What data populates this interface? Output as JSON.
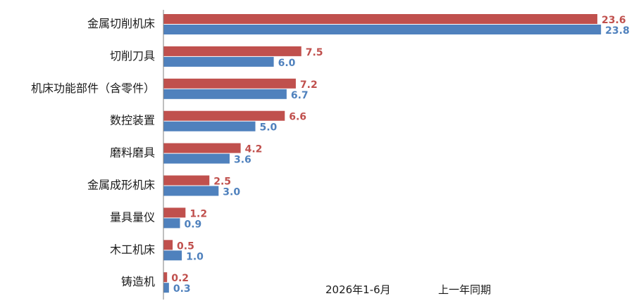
{
  "colors": {
    "current": "#c0504d",
    "previous": "#4f81bd",
    "axis": "#7f7f7f"
  },
  "chart_data": {
    "type": "bar",
    "orientation": "horizontal",
    "categories": [
      "金属切削机床",
      "切削刀具",
      "机床功能部件（含零件）",
      "数控装置",
      "磨料磨具",
      "金属成形机床",
      "量具量仪",
      "木工机床",
      "铸造机"
    ],
    "series": [
      {
        "name": "2026年1-6月",
        "values": [
          23.6,
          7.5,
          7.2,
          6.6,
          4.2,
          2.5,
          1.2,
          0.5,
          0.2
        ]
      },
      {
        "name": "上一年同期",
        "values": [
          23.8,
          6.0,
          6.7,
          5.0,
          3.6,
          3.0,
          0.9,
          1.0,
          0.3
        ]
      }
    ],
    "value_labels": [
      [
        "23.6",
        "7.5",
        "7.2",
        "6.6",
        "4.2",
        "2.5",
        "1.2",
        "0.5",
        "0.2"
      ],
      [
        "23.8",
        "6.0",
        "6.7",
        "5.0",
        "3.6",
        "3.0",
        "0.9",
        "1.0",
        "0.3"
      ]
    ],
    "xlim": [
      0,
      24
    ],
    "grid": false,
    "legend_position": "bottom-right",
    "title": "",
    "xlabel": "",
    "ylabel": ""
  }
}
